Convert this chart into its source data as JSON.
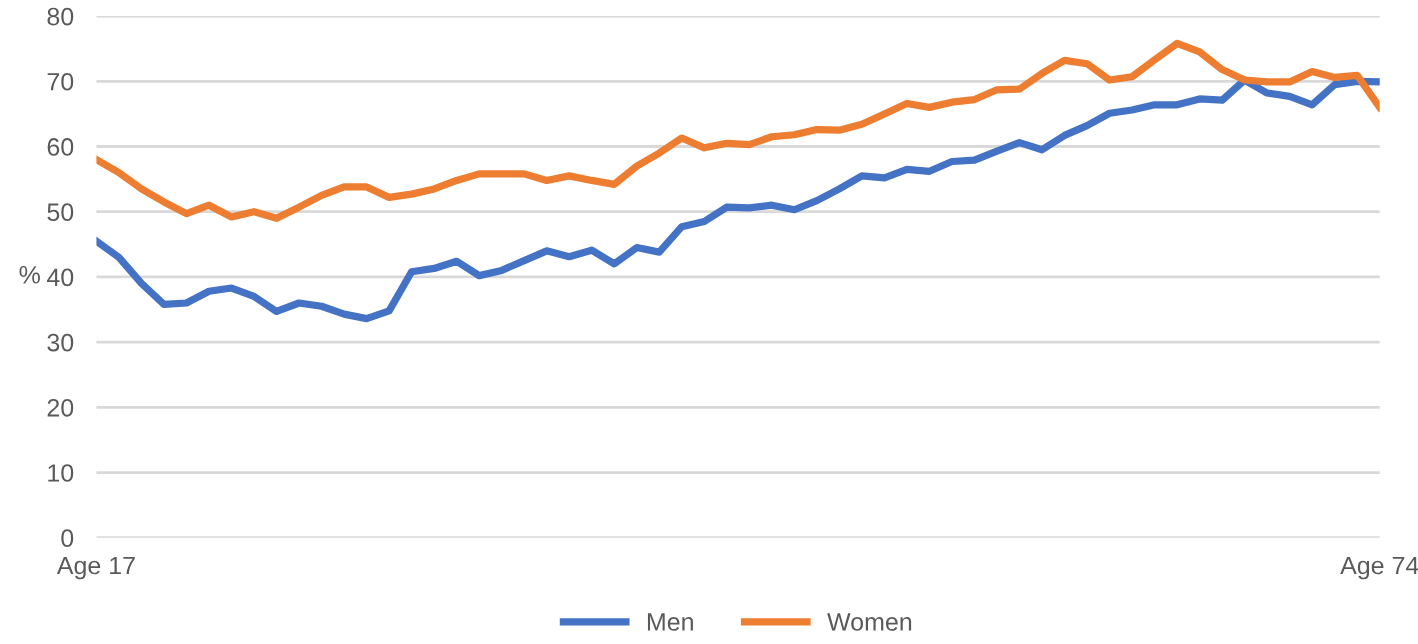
{
  "chart_data": {
    "type": "line",
    "ylabel": "%",
    "categories": [
      "Age 17",
      null,
      null,
      null,
      null,
      null,
      null,
      null,
      null,
      null,
      null,
      null,
      null,
      null,
      null,
      null,
      null,
      null,
      null,
      null,
      null,
      null,
      null,
      null,
      null,
      null,
      null,
      null,
      null,
      null,
      null,
      null,
      null,
      null,
      null,
      null,
      null,
      null,
      null,
      null,
      null,
      null,
      null,
      null,
      null,
      null,
      null,
      null,
      null,
      null,
      null,
      null,
      null,
      null,
      null,
      null,
      null,
      "Age 74"
    ],
    "series": [
      {
        "name": "Men",
        "color": "#4472c4",
        "values": [
          45.5,
          43,
          39,
          35.8,
          36,
          37.8,
          38.3,
          37,
          34.7,
          36,
          35.5,
          34.3,
          33.6,
          34.8,
          40.8,
          41.3,
          42.4,
          40.2,
          41,
          42.5,
          44,
          43.1,
          44.1,
          42,
          44.5,
          43.8,
          47.7,
          48.5,
          50.7,
          50.6,
          51,
          50.3,
          51.7,
          53.5,
          55.5,
          55.2,
          56.5,
          56.2,
          57.7,
          57.9,
          59.3,
          60.6,
          59.5,
          61.7,
          63.2,
          65.1,
          65.6,
          66.4,
          66.4,
          67.3,
          67.1,
          70.2,
          68.2,
          67.7,
          66.4,
          69.5,
          70,
          69.9
        ]
      },
      {
        "name": "Women",
        "color": "#ed7d31",
        "values": [
          58,
          56,
          53.5,
          51.5,
          49.7,
          51,
          49.2,
          50,
          49,
          50.7,
          52.5,
          53.8,
          53.8,
          52.2,
          52.7,
          53.5,
          54.8,
          55.8,
          55.8,
          55.8,
          54.8,
          55.5,
          54.8,
          54.2,
          57,
          59,
          61.3,
          59.8,
          60.5,
          60.3,
          61.5,
          61.8,
          62.6,
          62.5,
          63.4,
          65,
          66.6,
          66,
          66.8,
          67.2,
          68.7,
          68.8,
          71.2,
          73.2,
          72.7,
          70.2,
          70.7,
          73.3,
          75.8,
          74.5,
          71.8,
          70.2,
          69.9,
          69.9,
          71.5,
          70.6,
          70.9,
          66
        ]
      }
    ],
    "ylim": [
      0,
      80
    ],
    "yticks": [
      0,
      10,
      20,
      30,
      40,
      50,
      60,
      70,
      80
    ],
    "grid": "y",
    "legend": "bottom",
    "marker": "none",
    "line_style": "solid"
  }
}
